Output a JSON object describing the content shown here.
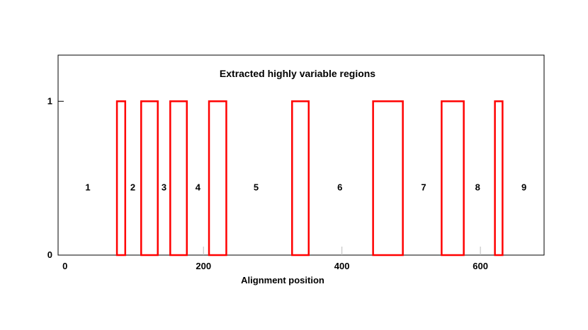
{
  "chart_data": {
    "type": "bar",
    "title": "Extracted highly variable regions",
    "xlabel": "Alignment position",
    "ylabel": "",
    "xlim": [
      -10,
      692
    ],
    "ylim": [
      0,
      1.3
    ],
    "x_ticks": [
      {
        "value": 0,
        "label": "0"
      },
      {
        "value": 200,
        "label": "200"
      },
      {
        "value": 400,
        "label": "400"
      },
      {
        "value": 600,
        "label": "600"
      }
    ],
    "y_ticks": [
      {
        "value": 0,
        "label": "0"
      },
      {
        "value": 1,
        "label": "1"
      }
    ],
    "series": [
      {
        "color": "#ff0000",
        "regions": [
          {
            "start": 75,
            "end": 87,
            "value": 1
          },
          {
            "start": 110,
            "end": 134,
            "value": 1
          },
          {
            "start": 152,
            "end": 176,
            "value": 1
          },
          {
            "start": 208,
            "end": 233,
            "value": 1
          },
          {
            "start": 328,
            "end": 352,
            "value": 1
          },
          {
            "start": 445,
            "end": 488,
            "value": 1
          },
          {
            "start": 544,
            "end": 576,
            "value": 1
          },
          {
            "start": 621,
            "end": 632,
            "value": 1
          }
        ]
      }
    ],
    "region_labels": [
      {
        "label": "1",
        "x": 33
      },
      {
        "label": "2",
        "x": 98
      },
      {
        "label": "3",
        "x": 143
      },
      {
        "label": "4",
        "x": 192
      },
      {
        "label": "5",
        "x": 276
      },
      {
        "label": "6",
        "x": 397
      },
      {
        "label": "7",
        "x": 518
      },
      {
        "label": "8",
        "x": 596
      },
      {
        "label": "9",
        "x": 663
      }
    ],
    "region_label_y": 0.42,
    "grid": false
  }
}
